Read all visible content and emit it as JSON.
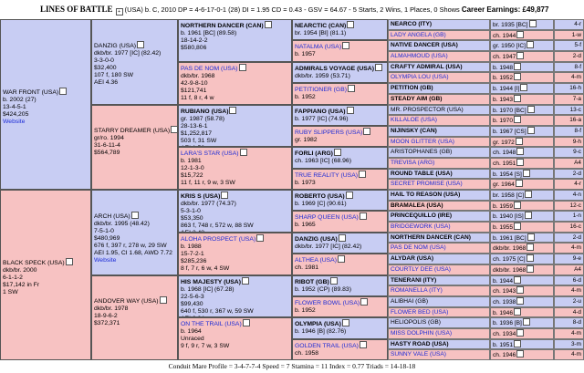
{
  "header": {
    "title": "LINES OF BATTLE",
    "details": "(USA) b. C, 2010 DP = 4-6-17-0-1 (28) DI = 1.95   CD = 0.43 - GSV = 64.67 - 5 Starts, 2 Wins, 1 Places, 0 Shows",
    "earnings": "Career Earnings: £49,877"
  },
  "footer": "Conduit Mare Profile = 3-4-7-7-4   Speed = 7   Stamina = 11   Index = 0.77   Triads = 14-18-18",
  "gen1": [
    {
      "name": "WAR FRONT (USA)",
      "lines": [
        "b. 2002 (27)",
        "13-4-5-1",
        "$424,205"
      ],
      "link": "Website",
      "sex": "male"
    },
    {
      "name": "BLACK SPECK (USA)",
      "lines": [
        "dkb/br. 2000",
        "6-1-1-2",
        "$17,142 in Fr",
        "1 SW"
      ],
      "sex": "female"
    }
  ],
  "gen2": [
    {
      "name": "DANZIG (USA)",
      "lines": [
        "dkb/br. 1977 [IC] (82.42)",
        "3-3-0-0",
        "$32,400",
        "107 f, 180 SW",
        "AEI 4.36"
      ],
      "sex": "male"
    },
    {
      "name": "STARRY DREAMER (USA)",
      "lines": [
        "gr/ro. 1994",
        "31-6-11-4",
        "$564,789"
      ],
      "sex": "female"
    },
    {
      "name": "ARCH (USA)",
      "lines": [
        "dkb/br. 1995 (48.42)",
        "7-5-1-0",
        "$480,969",
        "676 f, 397 r, 278 w, 29 SW",
        "AEI 1.95, CI 1.68, AWD 7.72"
      ],
      "link": "Website",
      "sex": "male"
    },
    {
      "name": "ANDOVER WAY (USA)",
      "lines": [
        "dkb/br. 1978",
        "18-9-6-2",
        "$372,371"
      ],
      "sex": "female"
    }
  ],
  "gen3": [
    {
      "name": "NORTHERN DANCER (CAN)",
      "lines": [
        "b. 1961 [BC] (89.58)",
        "18-14-2-2",
        "$580,806"
      ],
      "sex": "male"
    },
    {
      "name": "PAS DE NOM (USA)",
      "lines": [
        "dkb/br. 1968",
        "42-9-8-10",
        "$121,741",
        "11 f, 8 r, 4 w"
      ],
      "sex": "female"
    },
    {
      "name": "RUBIANO (USA)",
      "lines": [
        "gr. 1987 (58.78)",
        "28-13-6-1",
        "$1,252,817",
        "503 f, 31 SW",
        "AEI 1.56"
      ],
      "sex": "male"
    },
    {
      "name": "LARA'S STAR (USA)",
      "lines": [
        "b. 1981",
        "12-1-3-0",
        "$15,722",
        "11 f, 11 r, 9 w, 3 SW"
      ],
      "sex": "female"
    },
    {
      "name": "KRIS S (USA)",
      "lines": [
        "dkb/br. 1977 (74.37)",
        "5-3-1-0",
        "$53,350",
        "863 f, 748 r, 572 w, 88 SW",
        "AEI 2.48"
      ],
      "sex": "male"
    },
    {
      "name": "ALOHA PROSPECT (USA)",
      "lines": [
        "b. 1988",
        "15-7-2-1",
        "$285,236",
        "8 f, 7 r, 6 w, 4 SW"
      ],
      "sex": "female"
    },
    {
      "name": "HIS MAJESTY (USA)",
      "lines": [
        "b. 1968 [IC] (67.28)",
        "22-5-6-3",
        "$99,430",
        "640 f, 530 r, 367 w, 59 SW",
        "AEI 2.04"
      ],
      "sex": "male"
    },
    {
      "name": "ON THE TRAIL (USA)",
      "lines": [
        "b. 1964",
        "Unraced",
        "9 f, 9 r, 7 w, 3 SW"
      ],
      "sex": "female"
    }
  ],
  "gen4": [
    {
      "name": "NEARCTIC (CAN)",
      "lines": [
        "br. 1954 [BI] (81.1)"
      ],
      "sex": "male"
    },
    {
      "name": "NATALMA (USA)",
      "lines": [
        "b. 1957"
      ],
      "sex": "female"
    },
    {
      "name": "ADMIRALS VOYAGE (USA)",
      "lines": [
        "dkb/br. 1959 (53.71)"
      ],
      "sex": "male"
    },
    {
      "name": "PETITIONER (GB)",
      "lines": [
        "b. 1952"
      ],
      "sex": "female"
    },
    {
      "name": "FAPPIANO (USA)",
      "lines": [
        "b. 1977 [IC] (74.96)"
      ],
      "sex": "male"
    },
    {
      "name": "RUBY SLIPPERS (USA)",
      "lines": [
        "gr. 1982"
      ],
      "sex": "female"
    },
    {
      "name": "FORLI (ARG)",
      "lines": [
        "ch. 1963 [IC] (68.96)"
      ],
      "sex": "male"
    },
    {
      "name": "TRUE REALITY (USA)",
      "lines": [
        "b. 1973"
      ],
      "sex": "female"
    },
    {
      "name": "ROBERTO (USA)",
      "lines": [
        "b. 1969 [C] (90.61)"
      ],
      "sex": "male"
    },
    {
      "name": "SHARP QUEEN (USA)",
      "lines": [
        "b. 1965"
      ],
      "sex": "female"
    },
    {
      "name": "DANZIG (USA)",
      "lines": [
        "dkb/br. 1977 [IC] (82.42)"
      ],
      "sex": "male"
    },
    {
      "name": "ALTHEA (USA)",
      "lines": [
        "ch. 1981"
      ],
      "sex": "female"
    },
    {
      "name": "RIBOT (GB)",
      "lines": [
        "b. 1952 (CP) (89.83)"
      ],
      "sex": "male"
    },
    {
      "name": "FLOWER BOWL (USA)",
      "lines": [
        "b. 1952"
      ],
      "sex": "female"
    },
    {
      "name": "OLYMPIA (USA)",
      "lines": [
        "b. 1946 [B] (82.76)"
      ],
      "sex": "male"
    },
    {
      "name": "GOLDEN TRAIL (USA)",
      "lines": [
        "ch. 1958"
      ],
      "sex": "female"
    }
  ],
  "gen5": [
    {
      "name": "NEARCO (ITY)",
      "detail": "br. 1935 [BC]",
      "dosage": "4-r",
      "sex": "male",
      "bold": true
    },
    {
      "name": "LADY ANGELA (GB)",
      "detail": "ch. 1944",
      "dosage": "1-w",
      "sex": "female",
      "bold": false
    },
    {
      "name": "NATIVE DANCER (USA)",
      "detail": "gr. 1950 [IC]",
      "dosage": "5-f",
      "sex": "male",
      "bold": true
    },
    {
      "name": "ALMAHMOUD (USA)",
      "detail": "ch. 1947",
      "dosage": "2-d",
      "sex": "female",
      "bold": false
    },
    {
      "name": "CRAFTY ADMIRAL (USA)",
      "detail": "b. 1948",
      "dosage": "8-f",
      "sex": "male",
      "bold": true
    },
    {
      "name": "OLYMPIA LOU (USA)",
      "detail": "b. 1952",
      "dosage": "4-m",
      "sex": "female",
      "bold": false
    },
    {
      "name": "PETITION (GB)",
      "detail": "b. 1944 [I]",
      "dosage": "16-h",
      "sex": "male",
      "bold": true
    },
    {
      "name": "STEADY AIM (GB)",
      "detail": "b. 1943",
      "dosage": "7-a",
      "sex": "female",
      "bold": true
    },
    {
      "name": "MR. PROSPECTOR (USA)",
      "detail": "b. 1970 [BC]",
      "dosage": "13-c",
      "sex": "male",
      "bold": false
    },
    {
      "name": "KILLALOE (USA)",
      "detail": "b. 1970",
      "dosage": "16-a",
      "sex": "female",
      "bold": false
    },
    {
      "name": "NIJINSKY (CAN)",
      "detail": "b. 1967 [CS]",
      "dosage": "8-f",
      "sex": "male",
      "bold": true
    },
    {
      "name": "MOON GLITTER (USA)",
      "detail": "gr. 1972",
      "dosage": "9-h",
      "sex": "female",
      "bold": false
    },
    {
      "name": "ARISTOPHANES (GB)",
      "detail": "ch. 1948",
      "dosage": "9-c",
      "sex": "male",
      "bold": false
    },
    {
      "name": "TREVISA (ARG)",
      "detail": "ch. 1951",
      "dosage": "A4",
      "sex": "female",
      "bold": false
    },
    {
      "name": "ROUND TABLE (USA)",
      "detail": "b. 1954 [S]",
      "dosage": "2-d",
      "sex": "male",
      "bold": true
    },
    {
      "name": "SECRET PROMISE (USA)",
      "detail": "gr. 1964",
      "dosage": "4-r",
      "sex": "female",
      "bold": false
    },
    {
      "name": "HAIL TO REASON (USA)",
      "detail": "br. 1958 [C]",
      "dosage": "4-n",
      "sex": "male",
      "bold": true
    },
    {
      "name": "BRAMALEA (USA)",
      "detail": "b. 1959",
      "dosage": "12-c",
      "sex": "female",
      "bold": true
    },
    {
      "name": "PRINCEQUILLO (IRE)",
      "detail": "b. 1940 [IS]",
      "dosage": "1-n",
      "sex": "male",
      "bold": true
    },
    {
      "name": "BRIDGEWORK (USA)",
      "detail": "b. 1955",
      "dosage": "16-c",
      "sex": "female",
      "bold": false
    },
    {
      "name": "NORTHERN DANCER (CAN)",
      "detail": "b. 1961 [BC]",
      "dosage": "2-d",
      "sex": "male",
      "bold": true
    },
    {
      "name": "PAS DE NOM (USA)",
      "detail": "dkb/br. 1968",
      "dosage": "4-m",
      "sex": "female",
      "bold": false
    },
    {
      "name": "ALYDAR (USA)",
      "detail": "ch. 1975 [C]",
      "dosage": "9-e",
      "sex": "male",
      "bold": true
    },
    {
      "name": "COURTLY DEE (USA)",
      "detail": "dkb/br. 1968",
      "dosage": "A4",
      "sex": "female",
      "bold": false
    },
    {
      "name": "TENERANI (ITY)",
      "detail": "b. 1944",
      "dosage": "6-d",
      "sex": "male",
      "bold": true
    },
    {
      "name": "ROMANELLA (ITY)",
      "detail": "ch. 1943",
      "dosage": "4-m",
      "sex": "female",
      "bold": false
    },
    {
      "name": "ALIBHAI (GB)",
      "detail": "ch. 1938",
      "dosage": "2-u",
      "sex": "male",
      "bold": false
    },
    {
      "name": "FLOWER BED (USA)",
      "detail": "b. 1946",
      "dosage": "4-d",
      "sex": "female",
      "bold": false
    },
    {
      "name": "HELIOPOLIS (GB)",
      "detail": "b. 1936 [B]",
      "dosage": "8-d",
      "sex": "male",
      "bold": false
    },
    {
      "name": "MISS DOLPHIN (USA)",
      "detail": "ch. 1934",
      "dosage": "4-m",
      "sex": "female",
      "bold": false
    },
    {
      "name": "HASTY ROAD (USA)",
      "detail": "b. 1951",
      "dosage": "3-m",
      "sex": "male",
      "bold": true
    },
    {
      "name": "SUNNY VALE (USA)",
      "detail": "ch. 1946",
      "dosage": "4-m",
      "sex": "female",
      "bold": false
    }
  ]
}
